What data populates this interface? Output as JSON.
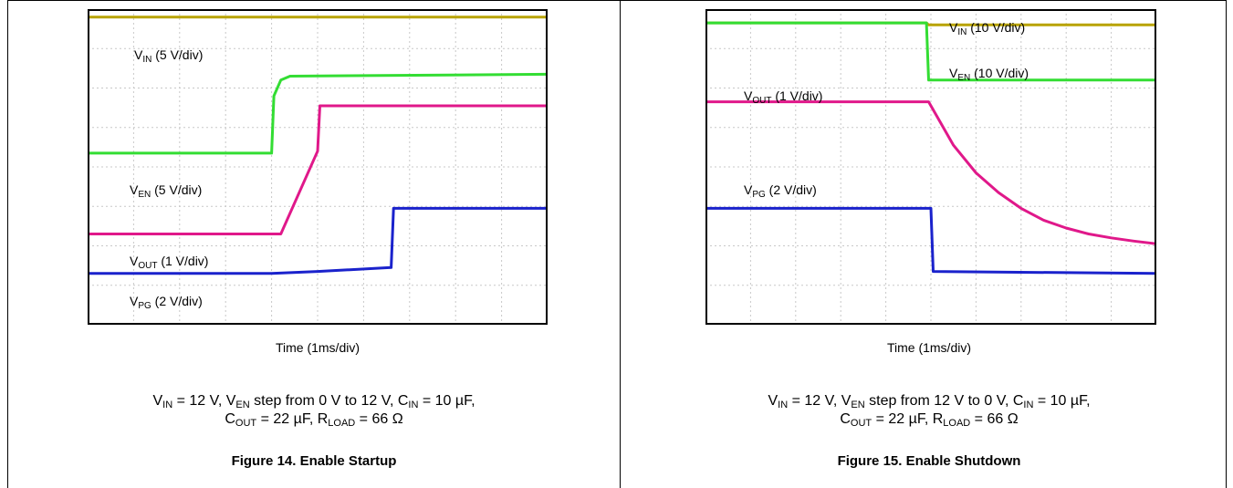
{
  "figures": [
    {
      "id": "fig14",
      "title": "Figure 14. Enable Startup",
      "time_axis": "Time (1ms/div)",
      "conditions_line1": [
        {
          "t": "V"
        },
        {
          "sub": "IN"
        },
        {
          "t": " = 12 V, V"
        },
        {
          "sub": "EN"
        },
        {
          "t": " step from 0 V to 12 V, C"
        },
        {
          "sub": "IN"
        },
        {
          "t": " = 10 µF,"
        }
      ],
      "conditions_line2": [
        {
          "t": "C"
        },
        {
          "sub": "OUT"
        },
        {
          "t": " = 22 µF, R"
        },
        {
          "sub": "LOAD"
        },
        {
          "t": " = 66 Ω"
        }
      ],
      "labels": [
        {
          "main": "V",
          "sub": "IN",
          "rest": " (5 V/div)"
        },
        {
          "main": "V",
          "sub": "EN",
          "rest": " (5 V/div)"
        },
        {
          "main": "V",
          "sub": "OUT",
          "rest": " (1 V/div)"
        },
        {
          "main": "V",
          "sub": "PG",
          "rest": " (2 V/div)"
        }
      ]
    },
    {
      "id": "fig15",
      "title": "Figure 15. Enable Shutdown",
      "time_axis": "Time (1ms/div)",
      "conditions_line1": [
        {
          "t": "V"
        },
        {
          "sub": "IN"
        },
        {
          "t": " = 12 V, V"
        },
        {
          "sub": "EN"
        },
        {
          "t": " step from 12 V to 0 V, C"
        },
        {
          "sub": "IN"
        },
        {
          "t": " = 10 µF,"
        }
      ],
      "conditions_line2": [
        {
          "t": "C"
        },
        {
          "sub": "OUT"
        },
        {
          "t": " = 22 µF, R"
        },
        {
          "sub": "LOAD"
        },
        {
          "t": " = 66 Ω"
        }
      ],
      "labels": [
        {
          "main": "V",
          "sub": "IN",
          "rest": " (10 V/div)"
        },
        {
          "main": "V",
          "sub": "EN",
          "rest": " (10 V/div)"
        },
        {
          "main": "V",
          "sub": "OUT",
          "rest": " (1 V/div)"
        },
        {
          "main": "V",
          "sub": "PG",
          "rest": " (2 V/div)"
        }
      ]
    }
  ],
  "chart_data": [
    {
      "type": "line",
      "title": "Figure 14. Enable Startup",
      "xlabel": "Time (1ms/div)",
      "x_units": "div",
      "y_units": "div",
      "xlim": [
        0,
        10
      ],
      "ylim": [
        0,
        8
      ],
      "grid": true,
      "series": [
        {
          "name": "VIN (5 V/div)",
          "color": "#b8a300",
          "x": [
            0,
            10
          ],
          "y": [
            7.8,
            7.8
          ]
        },
        {
          "name": "VEN (5 V/div)",
          "color": "#33dd33",
          "x": [
            0,
            4.0,
            4.05,
            4.2,
            4.4,
            10
          ],
          "y": [
            4.35,
            4.35,
            5.8,
            6.2,
            6.3,
            6.35
          ]
        },
        {
          "name": "VOUT (1 V/div)",
          "color": "#e0188a",
          "x": [
            0,
            4.2,
            5.0,
            5.05,
            10
          ],
          "y": [
            2.3,
            2.3,
            4.4,
            5.55,
            5.55
          ]
        },
        {
          "name": "VPG (2 V/div)",
          "color": "#1a22cc",
          "x": [
            0,
            4.0,
            5.0,
            6.6,
            6.65,
            10
          ],
          "y": [
            1.3,
            1.3,
            1.35,
            1.45,
            2.95,
            2.95
          ]
        }
      ]
    },
    {
      "type": "line",
      "title": "Figure 15. Enable Shutdown",
      "xlabel": "Time (1ms/div)",
      "x_units": "div",
      "y_units": "div",
      "xlim": [
        0,
        10
      ],
      "ylim": [
        0,
        8
      ],
      "grid": true,
      "series": [
        {
          "name": "VIN (10 V/div)",
          "color": "#b8a300",
          "x": [
            0,
            4.9,
            4.95,
            10
          ],
          "y": [
            7.65,
            7.65,
            7.6,
            7.6
          ]
        },
        {
          "name": "VEN (10 V/div)",
          "color": "#33dd33",
          "x": [
            0,
            4.9,
            4.95,
            10
          ],
          "y": [
            7.65,
            7.65,
            6.2,
            6.2
          ]
        },
        {
          "name": "VOUT (1 V/div)",
          "color": "#e0188a",
          "x": [
            0,
            4.95,
            5.5,
            6.0,
            6.5,
            7.0,
            7.5,
            8.0,
            8.5,
            9.0,
            9.5,
            10
          ],
          "y": [
            5.65,
            5.65,
            4.55,
            3.85,
            3.35,
            2.95,
            2.65,
            2.45,
            2.3,
            2.2,
            2.12,
            2.05
          ]
        },
        {
          "name": "VPG (2 V/div)",
          "color": "#1a22cc",
          "x": [
            0,
            5.0,
            5.05,
            10
          ],
          "y": [
            2.95,
            2.95,
            1.35,
            1.3
          ]
        }
      ]
    }
  ]
}
